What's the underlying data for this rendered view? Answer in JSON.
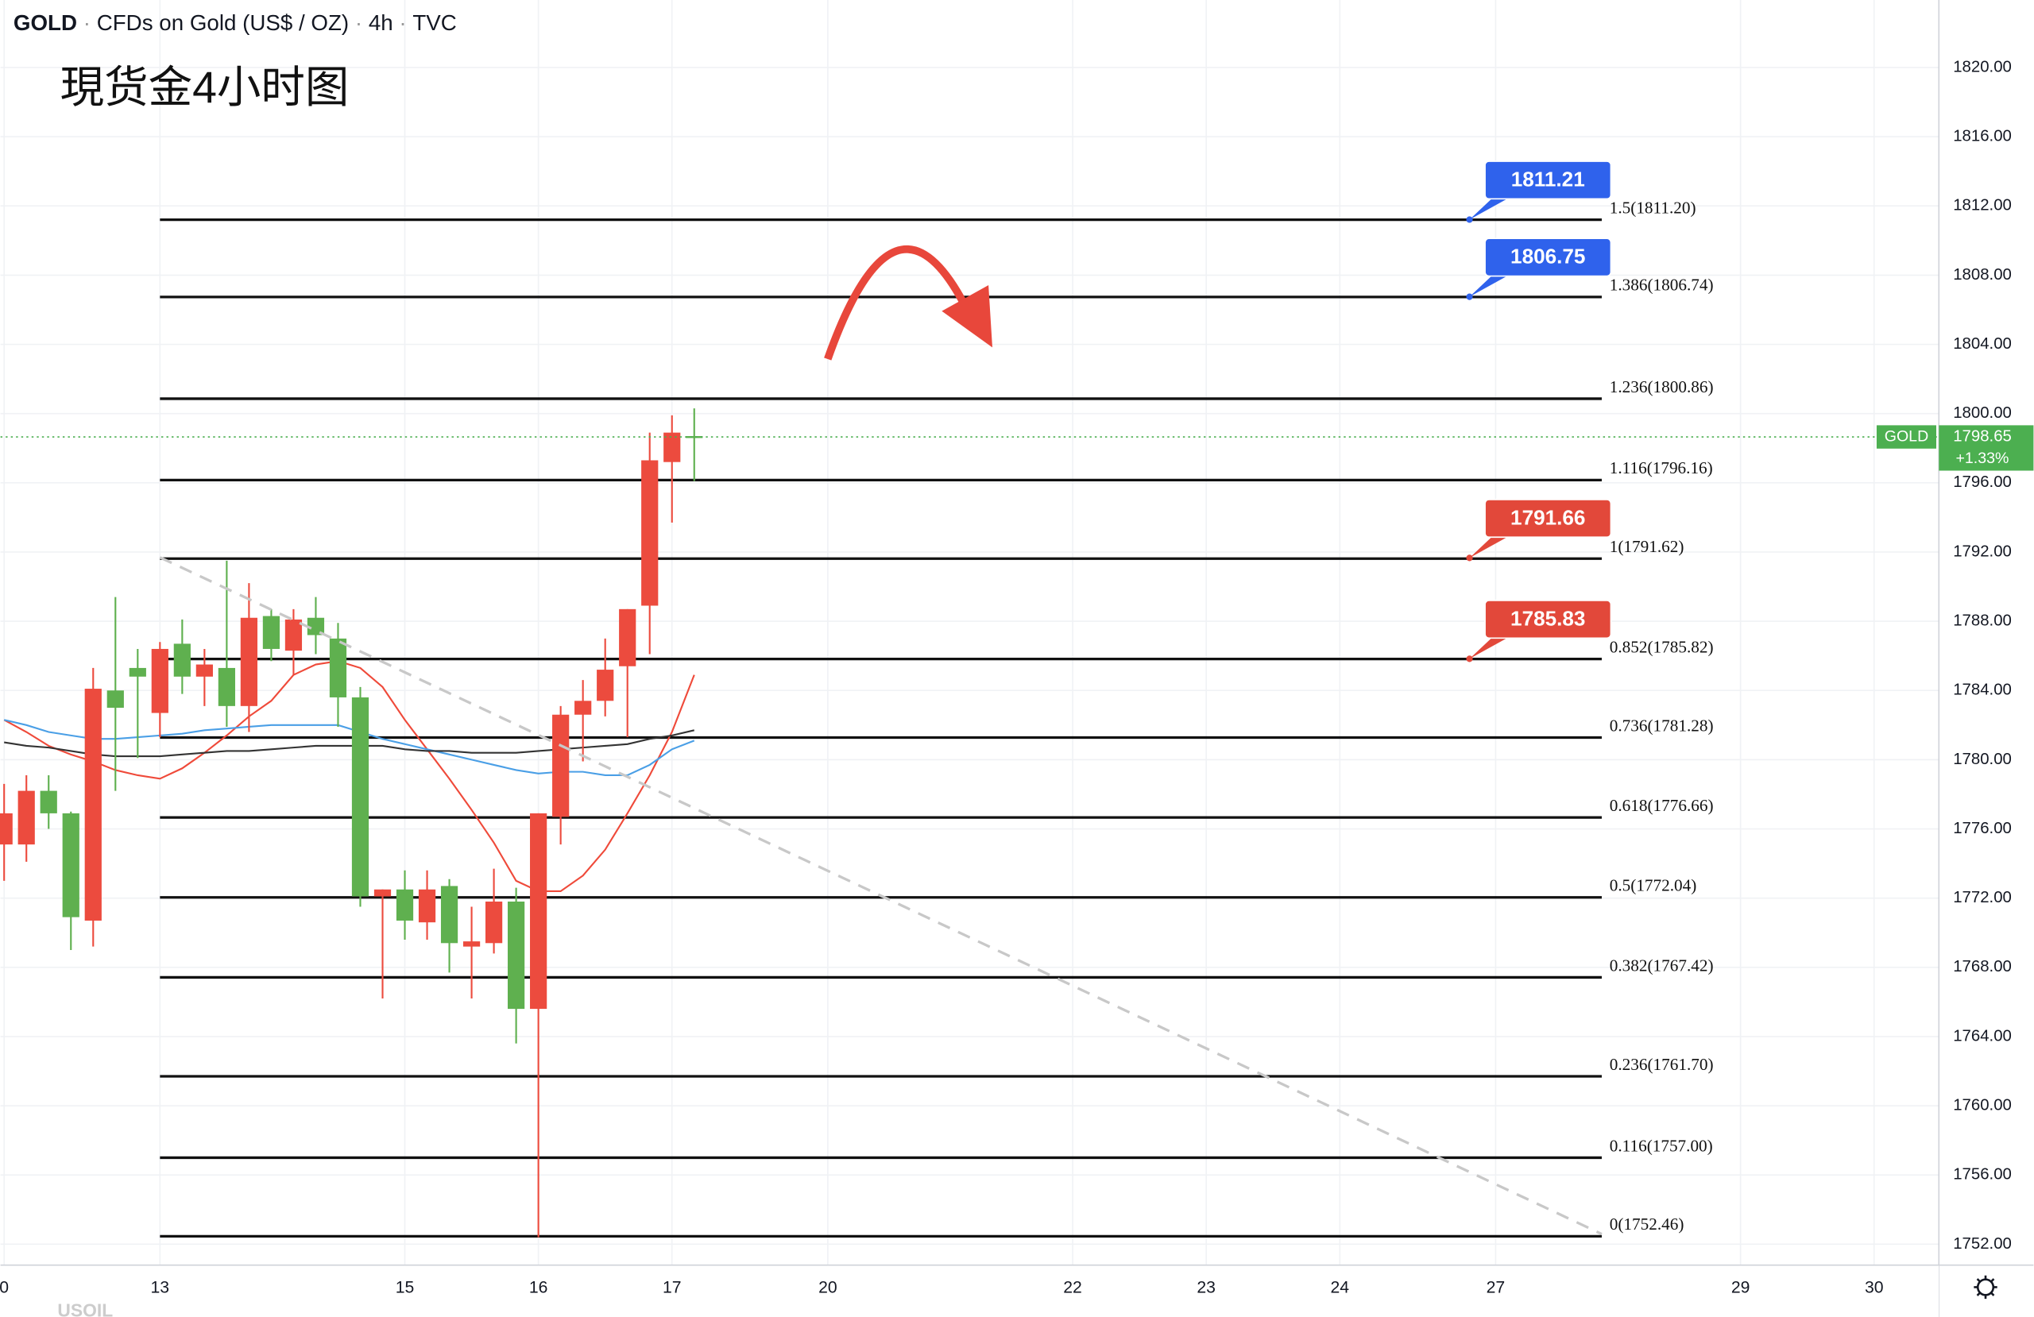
{
  "chart_data": {
    "type": "candlestick",
    "symbol": "GOLD",
    "description": "CFDs on Gold (US$ / OZ)",
    "interval": "4h",
    "source": "TVC",
    "title": "現货金4小时图",
    "footer_symbol": "USOIL",
    "x": [
      -7,
      -6,
      -5,
      -4,
      -3,
      -2,
      -1,
      0,
      1,
      2,
      3,
      4,
      5,
      6,
      7,
      8,
      9,
      10,
      11,
      12,
      13,
      14,
      15,
      16,
      17,
      18,
      19,
      20,
      21,
      22,
      23,
      24
    ],
    "open": [
      1775.1,
      1775.1,
      1778.2,
      1776.9,
      1770.7,
      1784.0,
      1785.3,
      1782.7,
      1786.7,
      1784.8,
      1785.3,
      1783.1,
      1788.3,
      1786.3,
      1788.2,
      1787.0,
      1783.6,
      1772.1,
      1772.5,
      1770.6,
      1772.7,
      1769.2,
      1769.4,
      1771.8,
      1765.6,
      1776.7,
      1782.6,
      1783.4,
      1785.4,
      1788.9,
      1797.2,
      1798.7
    ],
    "high": [
      1778.6,
      1779.1,
      1779.1,
      1777.0,
      1785.3,
      1789.4,
      1786.4,
      1786.8,
      1788.1,
      1786.4,
      1791.5,
      1790.2,
      1788.7,
      1788.7,
      1789.4,
      1787.9,
      1784.2,
      1772.5,
      1773.6,
      1773.6,
      1773.1,
      1771.5,
      1773.7,
      1772.6,
      1776.9,
      1783.1,
      1784.6,
      1787.0,
      1788.7,
      1798.9,
      1799.9,
      1800.3
    ],
    "low": [
      1773.0,
      1774.1,
      1776.0,
      1769.0,
      1769.2,
      1778.2,
      1780.1,
      1781.3,
      1783.8,
      1783.1,
      1781.9,
      1781.6,
      1785.7,
      1784.9,
      1786.1,
      1781.9,
      1771.5,
      1766.2,
      1769.6,
      1769.6,
      1767.7,
      1766.2,
      1768.8,
      1763.6,
      1752.4,
      1775.1,
      1779.9,
      1782.5,
      1781.3,
      1786.1,
      1793.7,
      1796.1
    ],
    "close": [
      1776.9,
      1778.2,
      1776.9,
      1770.9,
      1784.1,
      1783.0,
      1784.8,
      1786.4,
      1784.8,
      1785.5,
      1783.1,
      1788.2,
      1786.4,
      1788.1,
      1787.2,
      1783.6,
      1772.1,
      1772.5,
      1770.7,
      1772.5,
      1769.4,
      1769.5,
      1771.8,
      1765.6,
      1776.9,
      1782.6,
      1783.4,
      1785.2,
      1788.7,
      1797.3,
      1798.9,
      1798.65
    ],
    "up_color": "#ec4b3e",
    "down_color": "#5fb04f",
    "moving_averages": [
      {
        "color": "#ef4a3a",
        "values": [
          1782.3,
          1781.6,
          1780.8,
          1780.3,
          1779.9,
          1779.4,
          1779.1,
          1778.9,
          1779.5,
          1780.4,
          1781.4,
          1782.5,
          1783.4,
          1784.9,
          1785.5,
          1785.7,
          1785.3,
          1784.2,
          1782.3,
          1780.6,
          1778.9,
          1777.1,
          1775.2,
          1773.0,
          1772.4,
          1772.4,
          1773.3,
          1774.8,
          1776.9,
          1779.1,
          1781.6,
          1784.9
        ]
      },
      {
        "color": "#4a9fe6",
        "values": [
          1782.3,
          1782.0,
          1781.6,
          1781.4,
          1781.2,
          1781.2,
          1781.3,
          1781.4,
          1781.5,
          1781.7,
          1781.8,
          1781.9,
          1782.0,
          1782.0,
          1782.0,
          1782.0,
          1781.6,
          1781.2,
          1780.9,
          1780.6,
          1780.3,
          1780.0,
          1779.7,
          1779.4,
          1779.2,
          1779.3,
          1779.3,
          1779.1,
          1779.1,
          1779.7,
          1780.6,
          1781.1
        ]
      },
      {
        "color": "#333333",
        "values": [
          1781.0,
          1780.8,
          1780.7,
          1780.5,
          1780.3,
          1780.2,
          1780.2,
          1780.2,
          1780.3,
          1780.4,
          1780.5,
          1780.5,
          1780.6,
          1780.7,
          1780.8,
          1780.8,
          1780.8,
          1780.8,
          1780.6,
          1780.5,
          1780.5,
          1780.4,
          1780.4,
          1780.4,
          1780.5,
          1780.6,
          1780.7,
          1780.8,
          1780.9,
          1781.2,
          1781.4,
          1781.7
        ]
      }
    ],
    "fib_levels": [
      {
        "label": "1.5(1811.20)",
        "value": 1811.2
      },
      {
        "label": "1.386(1806.74)",
        "value": 1806.74
      },
      {
        "label": "1.236(1800.86)",
        "value": 1800.86
      },
      {
        "label": "1.116(1796.16)",
        "value": 1796.16
      },
      {
        "label": "1(1791.62)",
        "value": 1791.62
      },
      {
        "label": "0.852(1785.82)",
        "value": 1785.82
      },
      {
        "label": "0.736(1781.28)",
        "value": 1781.28
      },
      {
        "label": "0.618(1776.66)",
        "value": 1776.66
      },
      {
        "label": "0.5(1772.04)",
        "value": 1772.04
      },
      {
        "label": "0.382(1767.42)",
        "value": 1767.42
      },
      {
        "label": "0.236(1761.70)",
        "value": 1761.7
      },
      {
        "label": "0.116(1757.00)",
        "value": 1757.0
      },
      {
        "label": "0(1752.46)",
        "value": 1752.46
      }
    ],
    "price_tags": [
      {
        "value": 1811.21,
        "color": "#2f62ec"
      },
      {
        "value": 1806.75,
        "color": "#2f62ec"
      },
      {
        "value": 1791.66,
        "color": "#e2483a"
      },
      {
        "value": 1785.83,
        "color": "#e2483a"
      }
    ],
    "last_price": {
      "symbol": "GOLD",
      "value": 1798.65,
      "change": "+1.33%",
      "color": "#4caf50"
    },
    "xlim": [
      -7.164,
      79.91
    ],
    "xticks": [
      {
        "value": -7,
        "label": "0"
      },
      {
        "value": 0,
        "label": "13"
      },
      {
        "value": 11,
        "label": "15"
      },
      {
        "value": 17,
        "label": "16"
      },
      {
        "value": 23,
        "label": "17"
      },
      {
        "value": 30,
        "label": "20"
      },
      {
        "value": 41,
        "label": "22"
      },
      {
        "value": 47,
        "label": "23"
      },
      {
        "value": 53,
        "label": "24"
      },
      {
        "value": 60,
        "label": "27"
      },
      {
        "value": 71,
        "label": "29"
      },
      {
        "value": 77,
        "label": "30"
      }
    ],
    "ylim": [
      1750.79,
      1823.9
    ],
    "yticks": [
      {
        "value": 1752,
        "label": "1752.00"
      },
      {
        "value": 1756,
        "label": "1756.00"
      },
      {
        "value": 1760,
        "label": "1760.00"
      },
      {
        "value": 1764,
        "label": "1764.00"
      },
      {
        "value": 1768,
        "label": "1768.00"
      },
      {
        "value": 1772,
        "label": "1772.00"
      },
      {
        "value": 1776,
        "label": "1776.00"
      },
      {
        "value": 1780,
        "label": "1780.00"
      },
      {
        "value": 1784,
        "label": "1784.00"
      },
      {
        "value": 1788,
        "label": "1788.00"
      },
      {
        "value": 1792,
        "label": "1792.00"
      },
      {
        "value": 1796,
        "label": "1796.00"
      },
      {
        "value": 1800,
        "label": "1800.00"
      },
      {
        "value": 1804,
        "label": "1804.00"
      },
      {
        "value": 1808,
        "label": "1808.00"
      },
      {
        "value": 1812,
        "label": "1812.00"
      },
      {
        "value": 1816,
        "label": "1816.00"
      },
      {
        "value": 1820,
        "label": "1820.00"
      }
    ],
    "grid": true
  }
}
